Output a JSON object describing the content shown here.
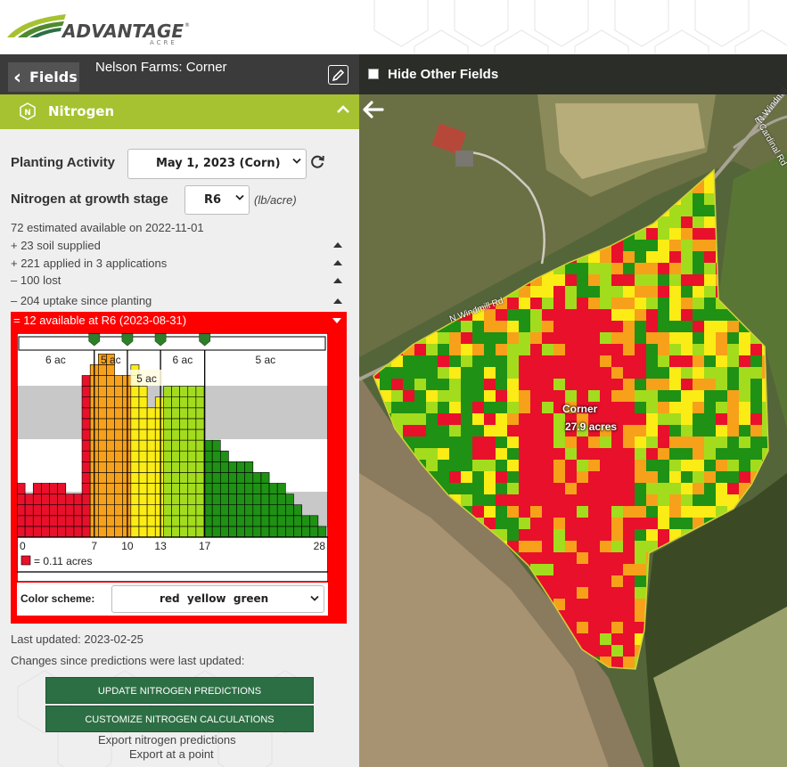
{
  "brand": {
    "logo_text": "ADVANTAGE",
    "logo_registered": "®",
    "logo_sub": "ACRE"
  },
  "field_bar": {
    "back_label": "Fields",
    "field_title": "Nelson Farms: Corner",
    "edit_icon": "pencil-icon"
  },
  "section": {
    "title": "Nitrogen",
    "icon": "nitrogen-badge-icon",
    "collapse_icon": "chevron-up-icon"
  },
  "planting": {
    "label": "Planting Activity",
    "selected": "May 1, 2023 (Corn)",
    "refresh_icon": "refresh-icon"
  },
  "growth_stage": {
    "label": "Nitrogen at growth stage",
    "selected": "R6",
    "unit": "(lb/acre)"
  },
  "balance": {
    "estimated": "72 estimated available on 2022-11-01",
    "soil": "+ 23 soil supplied",
    "applied": "+ 221 applied in 3 applications",
    "lost": "– 100 lost",
    "uptake": "– 204 uptake since planting",
    "available": "= 12 available at R6 (2023-08-31)"
  },
  "histogram": {
    "zone_labels": [
      "6 ac",
      "5 ac",
      "5 ac",
      "6 ac",
      "5 ac"
    ],
    "tick_labels": [
      "0",
      "7",
      "10",
      "13",
      "17",
      "28"
    ],
    "legend_text": "= 0.11 acres",
    "colors": {
      "red": "#e8102b",
      "orange": "#f7a11a",
      "yellow": "#fbec15",
      "lightgreen": "#a3dc1d",
      "green": "#1f9114",
      "band": "#c8c8c8"
    }
  },
  "chart_data": {
    "type": "bar",
    "title": "",
    "xlabel": "",
    "ylabel": "",
    "unit": "one square = 0.11 acres",
    "xlim": [
      0,
      28
    ],
    "thresholds": [
      7,
      10,
      13,
      17
    ],
    "x_ticks": [
      0,
      7,
      10,
      13,
      17,
      28
    ],
    "zones": [
      {
        "range": [
          0,
          7
        ],
        "color": "red",
        "acres_label": "6 ac"
      },
      {
        "range": [
          7,
          10
        ],
        "color": "orange",
        "acres_label": "5 ac"
      },
      {
        "range": [
          10,
          13
        ],
        "color": "yellow",
        "acres_label": "5 ac"
      },
      {
        "range": [
          13,
          17
        ],
        "color": "lightgreen",
        "acres_label": "6 ac"
      },
      {
        "range": [
          17,
          28
        ],
        "color": "green",
        "acres_label": "5 ac"
      }
    ],
    "columns_squares": [
      5,
      4,
      5,
      5,
      5,
      5,
      4,
      4,
      15,
      16,
      17,
      17,
      15,
      15,
      16,
      14,
      12,
      13,
      14,
      14,
      14,
      14,
      14,
      9,
      9,
      8,
      7,
      7,
      7,
      6,
      6,
      5,
      5,
      4,
      3,
      2,
      2,
      1
    ]
  },
  "color_scheme": {
    "label": "Color scheme:",
    "selected": "red  yellow  green"
  },
  "status": {
    "last_updated": "Last updated: 2023-02-25",
    "changes": "Changes since predictions were last updated:"
  },
  "actions": {
    "update": "UPDATE NITROGEN PREDICTIONS",
    "customize": "CUSTOMIZE NITROGEN CALCULATIONS",
    "export": "Export nitrogen predictions",
    "export_point": "Export at a point"
  },
  "map": {
    "hide_other_fields": "Hide Other Fields",
    "hide_checked": false,
    "back_icon": "arrow-left-icon",
    "field_name": "Corner",
    "field_area": "27.9 acres",
    "road_labels": [
      "N Windmill Rd",
      "E Cardinal Rd",
      "N Windmill"
    ]
  }
}
